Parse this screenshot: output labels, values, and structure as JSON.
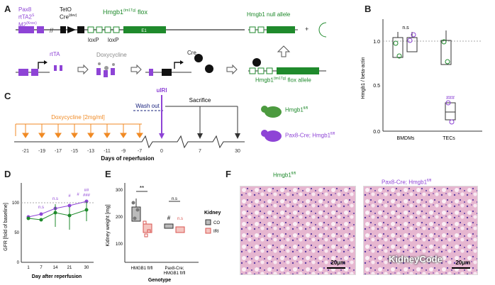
{
  "panels": {
    "A": "A",
    "B": "B",
    "C": "C",
    "D": "D",
    "E": "E",
    "F": "F"
  },
  "panelA": {
    "pax8": "Pax8",
    "rtta": "rtTA2",
    "rtta_sup": "S",
    "m2": "M2",
    "m2_sup": "(Knoc)",
    "teto": "TetO",
    "cre": "Cre",
    "cre_sup": "(dev)",
    "hmgb1_flox": "Hmgb1",
    "hmgb1_flox_sup": "(tm1Tg)",
    "hmgb1_flox_suffix": "flox",
    "loxp1": "loxP",
    "loxp2": "loxP",
    "exon": "E1",
    "null_allele": "Hmgb1 null allele",
    "rtta_label": "rtTA",
    "doxycycline": "Doxycycline",
    "cre_label": "Cre",
    "flox_allele": "Hmgb1",
    "flox_allele_sup": "(tm1Tg)",
    "flox_allele_suffix": "flox allele",
    "plus": "+"
  },
  "panelB": {
    "ylabel": "Hmgb1 / beta-actin",
    "ticks": [
      "1.0",
      "0.5",
      "0.0"
    ],
    "xlabels": [
      "BMDMs",
      "TECs"
    ],
    "ns": "n.s",
    "sig": "###"
  },
  "panelC": {
    "dox_label": "Doxycycline [2mg/ml]",
    "washout": "Wash out",
    "uiri": "uIRI",
    "sacrifice": "Sacrifice",
    "days_label": "Days of reperfusion",
    "ticks": [
      "-21",
      "-19",
      "-17",
      "-15",
      "-13",
      "-11",
      "-9",
      "-7",
      "0",
      "7",
      "30"
    ],
    "mouse1": "Hmgb1",
    "mouse1_sup": "fl/fl",
    "mouse2": "Pax8-Cre; Hmgb1",
    "mouse2_sup": "fl/fl"
  },
  "panelD": {
    "ylabel": "GFR [fold of baseline]",
    "xlabel": "Day after reperfusion",
    "yticks": [
      "100",
      "50",
      "0"
    ],
    "xticks": [
      "1",
      "7",
      "14",
      "21",
      "30"
    ],
    "annots": [
      "n.s",
      "n.s",
      "#",
      "#",
      "##",
      "###"
    ]
  },
  "panelE": {
    "ylabel": "Kidney weight [mg]",
    "xlabel": "Genotype",
    "groups": [
      "HMGB1 fl/fl",
      "Pax8-Cre;",
      "HMGB1 fl/fl"
    ],
    "group1": "HMGB1 fl/fl",
    "group2a": "Pax8-Cre;",
    "group2b": "HMGB1 fl/fl",
    "yticks": [
      "300",
      "200",
      "100"
    ],
    "sig1": "**",
    "sig2": "n.s",
    "hash": "#",
    "ns_small": "n.s",
    "legend_title": "Kidney",
    "legend_items": [
      "CO",
      "IRI"
    ]
  },
  "panelF": {
    "title_left": "Hmgb1",
    "title_left_sup": "fl/fl",
    "title_right": "Pax8-Cre; Hmgb1",
    "title_right_sup": "fl/fl",
    "scale_left": "20µm",
    "scale_right": "20µm",
    "watermark": "KidneyCode"
  },
  "colors": {
    "purple": "#8e44d6",
    "green": "#1f8a2c",
    "orange": "#f08a24",
    "red": "#d9534f",
    "navy": "#1a237e"
  }
}
